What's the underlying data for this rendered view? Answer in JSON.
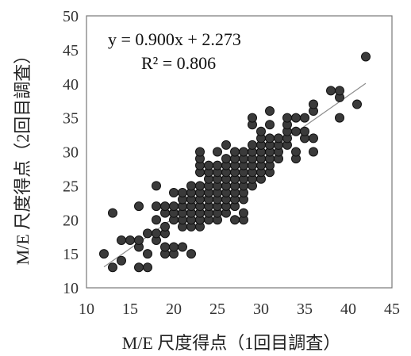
{
  "chart_data": {
    "type": "scatter",
    "title": "",
    "xlabel": "M/E 尺度得点（1回目調査）",
    "ylabel": "M/E 尺度得点（2回目調査）",
    "xlim": [
      10,
      45
    ],
    "ylim": [
      10,
      50
    ],
    "x_ticks": [
      "10",
      "15",
      "20",
      "25",
      "30",
      "35",
      "40",
      "45"
    ],
    "y_ticks": [
      "10",
      "15",
      "20",
      "25",
      "30",
      "35",
      "40",
      "45",
      "50"
    ],
    "grid": false,
    "equation": "y = 0.900x + 2.273",
    "r_squared": "R² = 0.806",
    "trendline": {
      "slope": 0.9,
      "intercept": 2.273,
      "x_range": [
        12,
        42
      ]
    },
    "colors": {
      "points": "#3a3a3a",
      "point_edge": "#111111",
      "trendline": "#8c8c8c",
      "frame": "#777777"
    },
    "points": [
      [
        12,
        15
      ],
      [
        13,
        13
      ],
      [
        13,
        21
      ],
      [
        14,
        14
      ],
      [
        14,
        17
      ],
      [
        15,
        17
      ],
      [
        16,
        13
      ],
      [
        16,
        16
      ],
      [
        16,
        17
      ],
      [
        16,
        22
      ],
      [
        17,
        13
      ],
      [
        17,
        15
      ],
      [
        17,
        18
      ],
      [
        18,
        17
      ],
      [
        18,
        18
      ],
      [
        18,
        20
      ],
      [
        18,
        22
      ],
      [
        18,
        25
      ],
      [
        19,
        15
      ],
      [
        19,
        16
      ],
      [
        19,
        18
      ],
      [
        19,
        19
      ],
      [
        19,
        21
      ],
      [
        19,
        22
      ],
      [
        20,
        15
      ],
      [
        20,
        16
      ],
      [
        20,
        20
      ],
      [
        20,
        21
      ],
      [
        20,
        22
      ],
      [
        20,
        24
      ],
      [
        21,
        16
      ],
      [
        21,
        19
      ],
      [
        21,
        20
      ],
      [
        21,
        21
      ],
      [
        21,
        22
      ],
      [
        21,
        23
      ],
      [
        21,
        24
      ],
      [
        22,
        15
      ],
      [
        22,
        19
      ],
      [
        22,
        20
      ],
      [
        22,
        21
      ],
      [
        22,
        22
      ],
      [
        22,
        23
      ],
      [
        22,
        24
      ],
      [
        22,
        25
      ],
      [
        23,
        19
      ],
      [
        23,
        20
      ],
      [
        23,
        21
      ],
      [
        23,
        22
      ],
      [
        23,
        23
      ],
      [
        23,
        24
      ],
      [
        23,
        25
      ],
      [
        23,
        27
      ],
      [
        23,
        28
      ],
      [
        23,
        29
      ],
      [
        23,
        30
      ],
      [
        24,
        20
      ],
      [
        24,
        21
      ],
      [
        24,
        22
      ],
      [
        24,
        23
      ],
      [
        24,
        24
      ],
      [
        24,
        25
      ],
      [
        24,
        26
      ],
      [
        24,
        27
      ],
      [
        24,
        28
      ],
      [
        25,
        20
      ],
      [
        25,
        21
      ],
      [
        25,
        22
      ],
      [
        25,
        23
      ],
      [
        25,
        24
      ],
      [
        25,
        25
      ],
      [
        25,
        26
      ],
      [
        25,
        27
      ],
      [
        25,
        28
      ],
      [
        25,
        30
      ],
      [
        26,
        21
      ],
      [
        26,
        22
      ],
      [
        26,
        23
      ],
      [
        26,
        24
      ],
      [
        26,
        25
      ],
      [
        26,
        26
      ],
      [
        26,
        27
      ],
      [
        26,
        28
      ],
      [
        26,
        29
      ],
      [
        26,
        31
      ],
      [
        27,
        20
      ],
      [
        27,
        22
      ],
      [
        27,
        23
      ],
      [
        27,
        24
      ],
      [
        27,
        25
      ],
      [
        27,
        26
      ],
      [
        27,
        27
      ],
      [
        27,
        28
      ],
      [
        27,
        29
      ],
      [
        27,
        30
      ],
      [
        28,
        20
      ],
      [
        28,
        21
      ],
      [
        28,
        23
      ],
      [
        28,
        24
      ],
      [
        28,
        25
      ],
      [
        28,
        26
      ],
      [
        28,
        27
      ],
      [
        28,
        28
      ],
      [
        28,
        29
      ],
      [
        28,
        30
      ],
      [
        29,
        25
      ],
      [
        29,
        26
      ],
      [
        29,
        27
      ],
      [
        29,
        28
      ],
      [
        29,
        29
      ],
      [
        29,
        30
      ],
      [
        29,
        31
      ],
      [
        29,
        34
      ],
      [
        29,
        35
      ],
      [
        30,
        26
      ],
      [
        30,
        27
      ],
      [
        30,
        28
      ],
      [
        30,
        29
      ],
      [
        30,
        30
      ],
      [
        30,
        31
      ],
      [
        30,
        32
      ],
      [
        30,
        33
      ],
      [
        31,
        27
      ],
      [
        31,
        28
      ],
      [
        31,
        29
      ],
      [
        31,
        30
      ],
      [
        31,
        31
      ],
      [
        31,
        32
      ],
      [
        31,
        34
      ],
      [
        31,
        36
      ],
      [
        32,
        29
      ],
      [
        32,
        30
      ],
      [
        32,
        31
      ],
      [
        32,
        32
      ],
      [
        33,
        31
      ],
      [
        33,
        32
      ],
      [
        33,
        33
      ],
      [
        33,
        34
      ],
      [
        33,
        35
      ],
      [
        34,
        29
      ],
      [
        34,
        30
      ],
      [
        34,
        33
      ],
      [
        34,
        35
      ],
      [
        35,
        32
      ],
      [
        35,
        33
      ],
      [
        35,
        35
      ],
      [
        36,
        30
      ],
      [
        36,
        32
      ],
      [
        36,
        36
      ],
      [
        36,
        37
      ],
      [
        38,
        39
      ],
      [
        39,
        35
      ],
      [
        39,
        38
      ],
      [
        39,
        39
      ],
      [
        41,
        37
      ],
      [
        42,
        44
      ]
    ]
  }
}
